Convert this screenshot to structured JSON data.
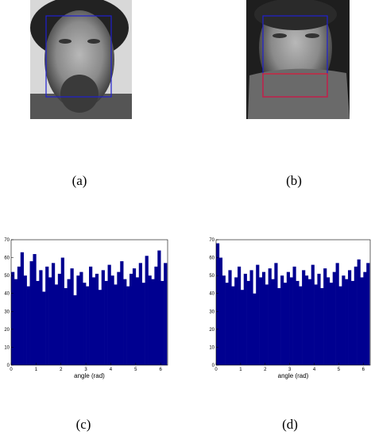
{
  "captions": [
    "(a)",
    "(b)",
    "(c)",
    "(d)"
  ],
  "chart_data": [
    {
      "type": "histogram",
      "xlabel": "angle (rad)",
      "color": "#000090",
      "bins": [
        0,
        0.125,
        0.25,
        0.375,
        0.5,
        0.625,
        0.75,
        0.875,
        1,
        1.125,
        1.25,
        1.375,
        1.5,
        1.625,
        1.75,
        1.875,
        2,
        2.125,
        2.25,
        2.375,
        2.5,
        2.625,
        2.75,
        2.875,
        3,
        3.125,
        3.25,
        3.375,
        3.5,
        3.625,
        3.75,
        3.875,
        4,
        4.125,
        4.25,
        4.375,
        4.5,
        4.625,
        4.75,
        4.875,
        5,
        5.125,
        5.25,
        5.375,
        5.5,
        5.625,
        5.75,
        5.875,
        6,
        6.125,
        6.25
      ],
      "values": [
        52,
        48,
        55,
        63,
        50,
        44,
        58,
        62,
        47,
        53,
        41,
        55,
        49,
        57,
        45,
        51,
        60,
        43,
        48,
        54,
        39,
        50,
        52,
        46,
        44,
        55,
        49,
        51,
        42,
        53,
        47,
        56,
        50,
        45,
        52,
        58,
        48,
        44,
        51,
        54,
        49,
        57,
        46,
        61,
        50,
        48,
        55,
        64,
        47,
        57
      ],
      "xlim": [
        0,
        6.28
      ],
      "ylim": [
        0,
        70
      ],
      "xticks": [
        0,
        1,
        2,
        3,
        4,
        5,
        6
      ],
      "yticks": [
        0,
        10,
        20,
        30,
        40,
        50,
        60,
        70
      ]
    },
    {
      "type": "histogram",
      "xlabel": "angle (rad)",
      "color": "#000090",
      "bins": [
        0,
        0.125,
        0.25,
        0.375,
        0.5,
        0.625,
        0.75,
        0.875,
        1,
        1.125,
        1.25,
        1.375,
        1.5,
        1.625,
        1.75,
        1.875,
        2,
        2.125,
        2.25,
        2.375,
        2.5,
        2.625,
        2.75,
        2.875,
        3,
        3.125,
        3.25,
        3.375,
        3.5,
        3.625,
        3.75,
        3.875,
        4,
        4.125,
        4.25,
        4.375,
        4.5,
        4.625,
        4.75,
        4.875,
        5,
        5.125,
        5.25,
        5.375,
        5.5,
        5.625,
        5.75,
        5.875,
        6,
        6.125,
        6.25
      ],
      "values": [
        68,
        60,
        50,
        46,
        53,
        44,
        49,
        55,
        42,
        51,
        47,
        53,
        40,
        56,
        49,
        52,
        45,
        54,
        48,
        57,
        43,
        50,
        46,
        52,
        49,
        55,
        47,
        44,
        53,
        50,
        48,
        56,
        45,
        51,
        43,
        54,
        49,
        46,
        52,
        57,
        44,
        50,
        48,
        53,
        47,
        55,
        59,
        49,
        52,
        57
      ],
      "xlim": [
        0,
        6.28
      ],
      "ylim": [
        0,
        70
      ],
      "xticks": [
        0,
        1,
        2,
        3,
        4,
        5,
        6
      ],
      "yticks": [
        0,
        10,
        20,
        30,
        40,
        50,
        60,
        70
      ]
    }
  ]
}
